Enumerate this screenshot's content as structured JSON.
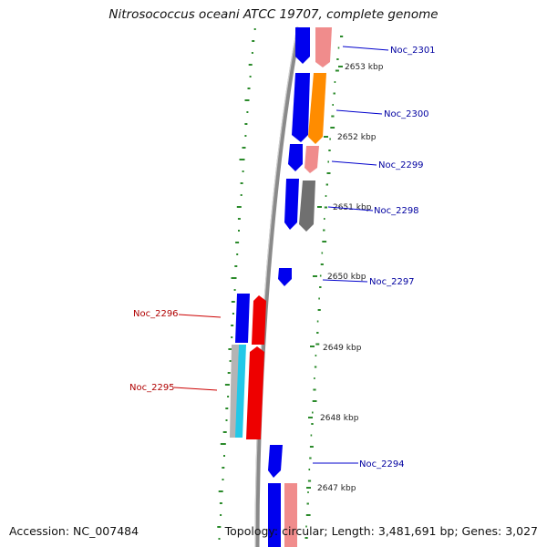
{
  "title": "Nitrosococcus oceani ATCC 19707, complete genome",
  "accession": "Accession: NC_007484",
  "summary": "Topology: circular; Length: 3,481,691 bp; Genes: 3,027",
  "colors": {
    "backbone": "#8a8a8a",
    "gene_blue": "#0000ee",
    "gene_pink": "#f08c8c",
    "gene_orange": "#ff8c00",
    "gene_grey": "#707070",
    "gene_red": "#ee0000",
    "gene_cyan": "#22c8e8",
    "gene_lightgrey": "#b4b4b4",
    "gc_plot": "#2a8a2a",
    "label_line_blue": "#0000cc",
    "label_line_red": "#cc0000"
  },
  "scale_labels": [
    "2653 kbp",
    "2652 kbp",
    "2651 kbp",
    "2650 kbp",
    "2649 kbp",
    "2648 kbp",
    "2647 kbp"
  ],
  "gene_labels": [
    "Noc_2301",
    "Noc_2300",
    "Noc_2299",
    "Noc_2298",
    "Noc_2297",
    "Noc_2296",
    "Noc_2295",
    "Noc_2294"
  ]
}
